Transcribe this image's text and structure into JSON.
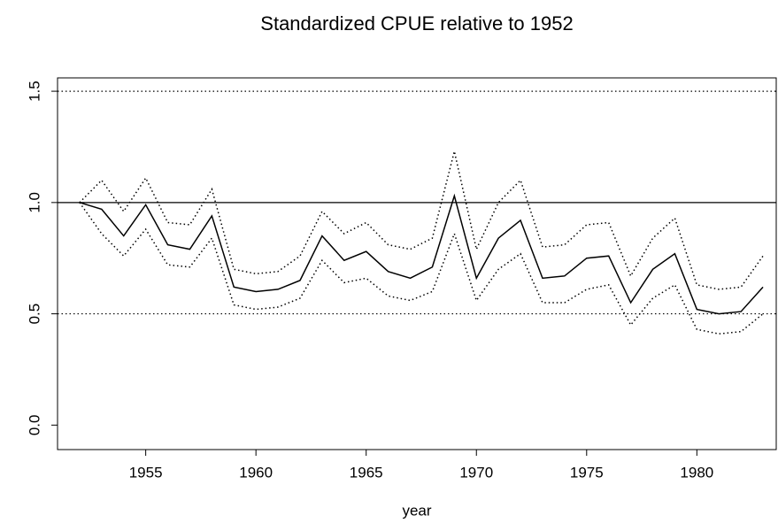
{
  "chart_data": {
    "type": "line",
    "title": "Standardized CPUE relative to 1952",
    "xlabel": "year",
    "x": [
      1952,
      1953,
      1954,
      1955,
      1956,
      1957,
      1958,
      1959,
      1960,
      1961,
      1962,
      1963,
      1964,
      1965,
      1966,
      1967,
      1968,
      1969,
      1970,
      1971,
      1972,
      1973,
      1974,
      1975,
      1976,
      1977,
      1978,
      1979,
      1980,
      1981,
      1982,
      1983
    ],
    "series": [
      {
        "color": "#000000",
        "style": "solid",
        "values": [
          1.0,
          0.97,
          0.85,
          0.99,
          0.81,
          0.79,
          0.94,
          0.62,
          0.6,
          0.61,
          0.65,
          0.85,
          0.74,
          0.78,
          0.69,
          0.66,
          0.71,
          1.03,
          0.66,
          0.84,
          0.92,
          0.66,
          0.67,
          0.75,
          0.76,
          0.55,
          0.7,
          0.77,
          0.52,
          0.5,
          0.51,
          0.62
        ]
      },
      {
        "color": "#000000",
        "style": "dotted",
        "values": [
          1.0,
          1.1,
          0.96,
          1.11,
          0.91,
          0.9,
          1.06,
          0.7,
          0.68,
          0.69,
          0.76,
          0.96,
          0.86,
          0.91,
          0.81,
          0.79,
          0.84,
          1.23,
          0.79,
          1.0,
          1.1,
          0.8,
          0.81,
          0.9,
          0.91,
          0.67,
          0.84,
          0.93,
          0.63,
          0.61,
          0.62,
          0.76
        ]
      },
      {
        "color": "#000000",
        "style": "dotted",
        "values": [
          1.0,
          0.86,
          0.76,
          0.88,
          0.72,
          0.71,
          0.84,
          0.54,
          0.52,
          0.53,
          0.57,
          0.74,
          0.64,
          0.66,
          0.58,
          0.56,
          0.6,
          0.86,
          0.56,
          0.7,
          0.77,
          0.55,
          0.55,
          0.61,
          0.63,
          0.45,
          0.57,
          0.63,
          0.43,
          0.41,
          0.42,
          0.5
        ]
      }
    ],
    "hlines": [
      {
        "y": 1.0,
        "style": "solid"
      },
      {
        "y": 0.5,
        "style": "dotted"
      },
      {
        "y": 1.5,
        "style": "dotted"
      }
    ],
    "xlim": [
      1951,
      1983.6
    ],
    "ylim": [
      -0.11,
      1.56
    ],
    "xticks": [
      1955,
      1960,
      1965,
      1970,
      1975,
      1980
    ],
    "yticks": [
      {
        "value": 0,
        "label": "0.0"
      },
      {
        "value": 0.5,
        "label": "0.5"
      },
      {
        "value": 1,
        "label": "1.0"
      },
      {
        "value": 1.5,
        "label": "1.5"
      }
    ]
  }
}
